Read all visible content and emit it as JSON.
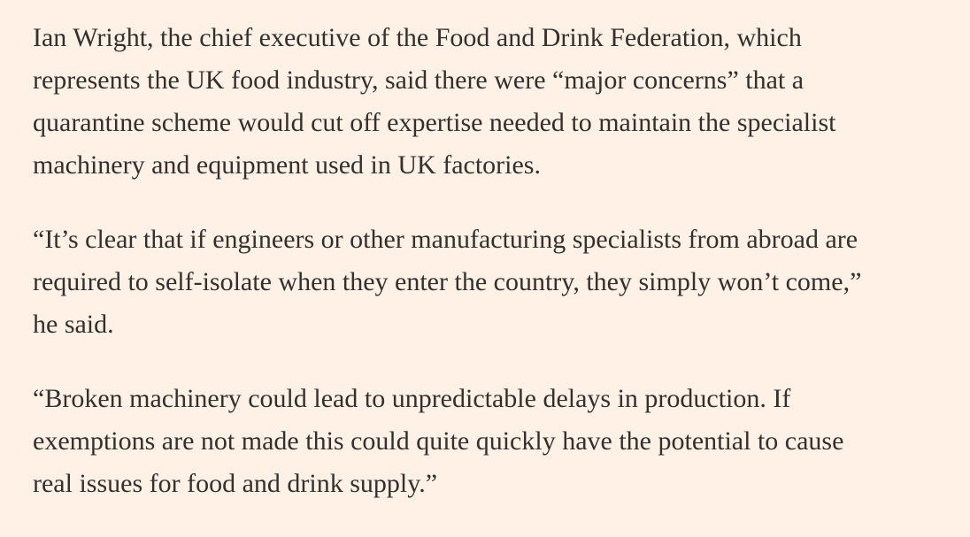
{
  "article": {
    "paragraphs": [
      {
        "lines": [
          "Ian Wright, the chief executive of the Food and Drink Federation, which",
          "represents the UK food industry, said there were “major concerns” that a",
          "quarantine scheme would cut off expertise needed to maintain the specialist",
          "machinery and equipment used in UK factories."
        ]
      },
      {
        "lines": [
          "“It’s clear that if engineers or other manufacturing specialists from abroad are",
          "required to self-isolate when they enter the country, they simply won’t come,”",
          "he said."
        ]
      },
      {
        "lines": [
          "“Broken machinery could lead to unpredictable delays in production. If",
          "exemptions are not made this could quite quickly have the potential to cause",
          "real issues for food and drink supply.”"
        ]
      }
    ]
  }
}
